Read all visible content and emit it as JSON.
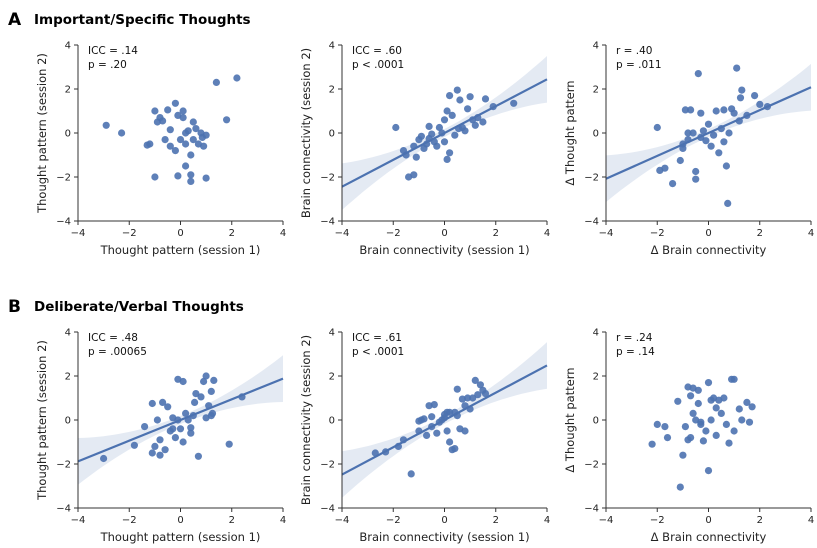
{
  "sections": [
    {
      "letter": "A",
      "title": "Important/Specific Thoughts"
    },
    {
      "letter": "B",
      "title": "Deliberate/Verbal Thoughts"
    }
  ],
  "chart_data": [
    {
      "type": "scatter",
      "section": "A",
      "xlabel": "Thought pattern (session 1)",
      "ylabel": "Thought pattern (session 2)",
      "xlim": [
        -4,
        4
      ],
      "ylim": [
        -4,
        4
      ],
      "xticks": [
        -4,
        -2,
        0,
        2,
        4
      ],
      "yticks": [
        -4,
        -2,
        0,
        2,
        4
      ],
      "stat_lines": [
        "ICC = .14",
        "p = .20"
      ],
      "fit": null,
      "points": [
        [
          -2.9,
          0.35
        ],
        [
          -2.3,
          0.0
        ],
        [
          -1.0,
          1.0
        ],
        [
          -0.9,
          0.5
        ],
        [
          -1.2,
          -0.5
        ],
        [
          -1.0,
          -2.0
        ],
        [
          -0.8,
          0.7
        ],
        [
          -0.6,
          -0.3
        ],
        [
          -0.4,
          -0.6
        ],
        [
          -0.5,
          1.05
        ],
        [
          -0.4,
          0.15
        ],
        [
          -0.2,
          1.35
        ],
        [
          -0.2,
          -0.8
        ],
        [
          -0.1,
          0.8
        ],
        [
          0.0,
          -0.3
        ],
        [
          0.1,
          1.0
        ],
        [
          0.1,
          0.7
        ],
        [
          0.2,
          0.0
        ],
        [
          0.2,
          -0.5
        ],
        [
          0.3,
          0.1
        ],
        [
          0.4,
          -1.0
        ],
        [
          0.5,
          0.5
        ],
        [
          0.5,
          -0.3
        ],
        [
          0.6,
          0.2
        ],
        [
          0.7,
          -0.5
        ],
        [
          0.8,
          0.0
        ],
        [
          0.9,
          -0.6
        ],
        [
          0.2,
          -1.5
        ],
        [
          0.4,
          -1.9
        ],
        [
          -0.1,
          -1.95
        ],
        [
          1.0,
          -0.1
        ],
        [
          0.85,
          -0.2
        ],
        [
          1.4,
          2.3
        ],
        [
          2.2,
          2.5
        ],
        [
          1.8,
          0.6
        ],
        [
          -1.3,
          -0.55
        ],
        [
          0.4,
          -2.2
        ],
        [
          1.0,
          -2.05
        ],
        [
          -0.7,
          0.55
        ]
      ]
    },
    {
      "type": "scatter",
      "section": "A",
      "xlabel": "Brain connectivity (session 1)",
      "ylabel": "Brain connectivity (session 2)",
      "xlim": [
        -4,
        4
      ],
      "ylim": [
        -4,
        4
      ],
      "xticks": [
        -4,
        -2,
        0,
        2,
        4
      ],
      "yticks": [
        -4,
        -2,
        0,
        2,
        4
      ],
      "stat_lines": [
        "ICC = .60",
        "p < .0001"
      ],
      "fit": {
        "intercept": 0.0,
        "slope": 0.61
      },
      "points": [
        [
          -1.9,
          0.25
        ],
        [
          -1.6,
          -0.8
        ],
        [
          -1.5,
          -1.0
        ],
        [
          -1.4,
          -2.0
        ],
        [
          -1.2,
          -1.9
        ],
        [
          -1.2,
          -0.6
        ],
        [
          -1.0,
          -0.3
        ],
        [
          -0.9,
          -0.15
        ],
        [
          -0.8,
          -0.7
        ],
        [
          -0.7,
          -0.5
        ],
        [
          -0.6,
          0.3
        ],
        [
          -0.5,
          -0.05
        ],
        [
          -0.4,
          -0.4
        ],
        [
          -0.3,
          -0.6
        ],
        [
          -0.2,
          0.25
        ],
        [
          -0.1,
          0.0
        ],
        [
          0.0,
          0.6
        ],
        [
          0.0,
          -0.4
        ],
        [
          0.1,
          -1.2
        ],
        [
          0.2,
          -0.9
        ],
        [
          0.1,
          1.0
        ],
        [
          0.2,
          1.7
        ],
        [
          0.3,
          0.8
        ],
        [
          0.4,
          -0.1
        ],
        [
          0.5,
          1.95
        ],
        [
          0.6,
          1.5
        ],
        [
          0.7,
          0.25
        ],
        [
          0.8,
          0.1
        ],
        [
          0.9,
          1.1
        ],
        [
          1.0,
          1.65
        ],
        [
          1.1,
          0.6
        ],
        [
          1.2,
          0.35
        ],
        [
          1.3,
          0.7
        ],
        [
          1.5,
          0.5
        ],
        [
          1.6,
          1.55
        ],
        [
          1.9,
          1.2
        ],
        [
          2.7,
          1.35
        ],
        [
          -0.6,
          -0.25
        ],
        [
          -1.1,
          -1.1
        ],
        [
          0.55,
          0.2
        ]
      ]
    },
    {
      "type": "scatter",
      "section": "A",
      "xlabel": "Δ Brain connectivity",
      "ylabel": "Δ Thought pattern",
      "xlim": [
        -4,
        4
      ],
      "ylim": [
        -4,
        4
      ],
      "xticks": [
        -4,
        -2,
        0,
        2,
        4
      ],
      "yticks": [
        -4,
        -2,
        0,
        2,
        4
      ],
      "stat_lines": [
        "r = .40",
        "p = .011"
      ],
      "fit": {
        "intercept": 0.0,
        "slope": 0.52
      },
      "points": [
        [
          -2.0,
          0.25
        ],
        [
          -1.9,
          -1.7
        ],
        [
          -1.7,
          -1.6
        ],
        [
          -1.4,
          -2.3
        ],
        [
          -1.1,
          -1.25
        ],
        [
          -1.0,
          -0.5
        ],
        [
          -1.0,
          -0.7
        ],
        [
          -0.8,
          -0.3
        ],
        [
          -0.9,
          1.05
        ],
        [
          -0.8,
          0.0
        ],
        [
          -0.7,
          1.05
        ],
        [
          -0.6,
          0.0
        ],
        [
          -0.5,
          -1.75
        ],
        [
          -0.5,
          -2.1
        ],
        [
          -0.4,
          2.7
        ],
        [
          -0.3,
          -0.2
        ],
        [
          -0.2,
          0.1
        ],
        [
          -0.1,
          -0.35
        ],
        [
          0.0,
          0.4
        ],
        [
          0.1,
          -0.6
        ],
        [
          0.2,
          -0.1
        ],
        [
          0.3,
          1.0
        ],
        [
          0.4,
          -0.9
        ],
        [
          0.5,
          0.2
        ],
        [
          0.6,
          -0.4
        ],
        [
          0.7,
          -1.5
        ],
        [
          0.75,
          -3.2
        ],
        [
          0.8,
          0.0
        ],
        [
          0.9,
          1.1
        ],
        [
          1.0,
          0.9
        ],
        [
          1.1,
          2.95
        ],
        [
          1.2,
          0.55
        ],
        [
          1.3,
          1.95
        ],
        [
          1.25,
          1.6
        ],
        [
          1.5,
          0.8
        ],
        [
          1.8,
          1.7
        ],
        [
          2.0,
          1.3
        ],
        [
          2.3,
          1.2
        ],
        [
          0.6,
          1.05
        ],
        [
          -0.3,
          0.9
        ]
      ]
    },
    {
      "type": "scatter",
      "section": "B",
      "xlabel": "Thought pattern (session 1)",
      "ylabel": "Thought pattern (session 2)",
      "xlim": [
        -4,
        4
      ],
      "ylim": [
        -4,
        4
      ],
      "xticks": [
        -4,
        -2,
        0,
        2,
        4
      ],
      "yticks": [
        -4,
        -2,
        0,
        2,
        4
      ],
      "stat_lines": [
        "ICC = .48",
        "p = .00065"
      ],
      "fit": {
        "intercept": 0.0,
        "slope": 0.47
      },
      "points": [
        [
          -3.0,
          -1.75
        ],
        [
          -1.8,
          -1.15
        ],
        [
          -1.4,
          -0.3
        ],
        [
          -1.1,
          -1.5
        ],
        [
          -1.1,
          0.75
        ],
        [
          -1.0,
          -1.2
        ],
        [
          -0.9,
          0.0
        ],
        [
          -0.8,
          -0.9
        ],
        [
          -0.7,
          0.8
        ],
        [
          -0.6,
          -1.35
        ],
        [
          -0.5,
          0.6
        ],
        [
          -0.4,
          -0.5
        ],
        [
          -0.3,
          0.1
        ],
        [
          -0.3,
          -0.4
        ],
        [
          -0.2,
          -0.8
        ],
        [
          -0.1,
          0.0
        ],
        [
          -0.1,
          1.85
        ],
        [
          0.0,
          -0.4
        ],
        [
          0.1,
          1.75
        ],
        [
          0.1,
          -1.0
        ],
        [
          0.2,
          0.3
        ],
        [
          0.3,
          0.0
        ],
        [
          0.4,
          -0.6
        ],
        [
          0.5,
          0.2
        ],
        [
          0.6,
          1.2
        ],
        [
          0.7,
          -1.65
        ],
        [
          0.8,
          1.05
        ],
        [
          0.9,
          1.75
        ],
        [
          1.0,
          0.1
        ],
        [
          1.0,
          2.0
        ],
        [
          1.1,
          0.65
        ],
        [
          1.2,
          0.2
        ],
        [
          1.2,
          1.3
        ],
        [
          1.25,
          0.3
        ],
        [
          1.3,
          1.8
        ],
        [
          1.9,
          -1.1
        ],
        [
          2.4,
          1.05
        ],
        [
          -0.8,
          -1.6
        ],
        [
          0.4,
          -0.35
        ],
        [
          0.55,
          0.8
        ]
      ]
    },
    {
      "type": "scatter",
      "section": "B",
      "xlabel": "Brain connectivity (session 1)",
      "ylabel": "Brain connectivity (session 2)",
      "xlim": [
        -4,
        4
      ],
      "ylim": [
        -4,
        4
      ],
      "xticks": [
        -4,
        -2,
        0,
        2,
        4
      ],
      "yticks": [
        -4,
        -2,
        0,
        2,
        4
      ],
      "stat_lines": [
        "ICC = .61",
        "p < .0001"
      ],
      "fit": {
        "intercept": 0.0,
        "slope": 0.62
      },
      "points": [
        [
          -2.7,
          -1.5
        ],
        [
          -2.3,
          -1.45
        ],
        [
          -1.8,
          -1.2
        ],
        [
          -1.3,
          -2.45
        ],
        [
          -1.6,
          -0.9
        ],
        [
          -1.0,
          -0.5
        ],
        [
          -0.9,
          0.0
        ],
        [
          -0.8,
          0.05
        ],
        [
          -0.7,
          -0.7
        ],
        [
          -0.6,
          0.65
        ],
        [
          -0.5,
          -0.3
        ],
        [
          -0.4,
          0.7
        ],
        [
          -0.3,
          -0.6
        ],
        [
          -0.2,
          -0.1
        ],
        [
          -0.1,
          0.0
        ],
        [
          0.0,
          0.1
        ],
        [
          0.1,
          -0.5
        ],
        [
          0.1,
          0.35
        ],
        [
          0.2,
          0.35
        ],
        [
          0.2,
          -1.0
        ],
        [
          0.3,
          -1.35
        ],
        [
          0.4,
          -1.3
        ],
        [
          0.4,
          0.35
        ],
        [
          0.5,
          1.4
        ],
        [
          0.5,
          0.2
        ],
        [
          0.6,
          -0.4
        ],
        [
          0.7,
          0.95
        ],
        [
          0.8,
          0.65
        ],
        [
          0.9,
          1.0
        ],
        [
          1.0,
          0.5
        ],
        [
          1.1,
          1.0
        ],
        [
          1.2,
          1.8
        ],
        [
          1.3,
          1.15
        ],
        [
          1.4,
          1.6
        ],
        [
          1.5,
          1.35
        ],
        [
          1.6,
          1.2
        ],
        [
          -1.0,
          -0.05
        ],
        [
          0.0,
          0.25
        ],
        [
          0.8,
          -0.5
        ],
        [
          -0.5,
          0.15
        ]
      ]
    },
    {
      "type": "scatter",
      "section": "B",
      "xlabel": "Δ Brain connectivity",
      "ylabel": "Δ Thought pattern",
      "xlim": [
        -4,
        4
      ],
      "ylim": [
        -4,
        4
      ],
      "xticks": [
        -4,
        -2,
        0,
        2,
        4
      ],
      "yticks": [
        -4,
        -2,
        0,
        2,
        4
      ],
      "stat_lines": [
        "r = .24",
        "p = .14"
      ],
      "fit": null,
      "points": [
        [
          -2.2,
          -1.1
        ],
        [
          -2.0,
          -0.2
        ],
        [
          -1.7,
          -0.3
        ],
        [
          -1.6,
          -0.8
        ],
        [
          -1.2,
          0.85
        ],
        [
          -1.1,
          -3.05
        ],
        [
          -0.9,
          -0.3
        ],
        [
          -0.8,
          -0.9
        ],
        [
          -0.8,
          1.5
        ],
        [
          -0.7,
          -0.8
        ],
        [
          -0.7,
          1.1
        ],
        [
          -0.6,
          0.3
        ],
        [
          -0.6,
          1.45
        ],
        [
          -0.5,
          0.0
        ],
        [
          -0.4,
          0.75
        ],
        [
          -0.4,
          1.35
        ],
        [
          -0.3,
          -0.1
        ],
        [
          -0.3,
          -0.2
        ],
        [
          -0.2,
          -0.95
        ],
        [
          -0.1,
          -0.5
        ],
        [
          0.0,
          1.7
        ],
        [
          0.0,
          -2.3
        ],
        [
          0.1,
          0.0
        ],
        [
          0.1,
          0.9
        ],
        [
          0.2,
          1.0
        ],
        [
          0.3,
          -0.7
        ],
        [
          0.3,
          0.55
        ],
        [
          0.4,
          0.9
        ],
        [
          0.5,
          0.3
        ],
        [
          0.6,
          1.0
        ],
        [
          0.7,
          -0.2
        ],
        [
          0.8,
          -1.05
        ],
        [
          0.9,
          1.85
        ],
        [
          1.0,
          -0.5
        ],
        [
          1.0,
          1.85
        ],
        [
          1.2,
          0.5
        ],
        [
          1.3,
          0.0
        ],
        [
          1.5,
          0.8
        ],
        [
          1.6,
          -0.1
        ],
        [
          1.7,
          0.6
        ],
        [
          -1.0,
          -1.6
        ]
      ]
    }
  ]
}
